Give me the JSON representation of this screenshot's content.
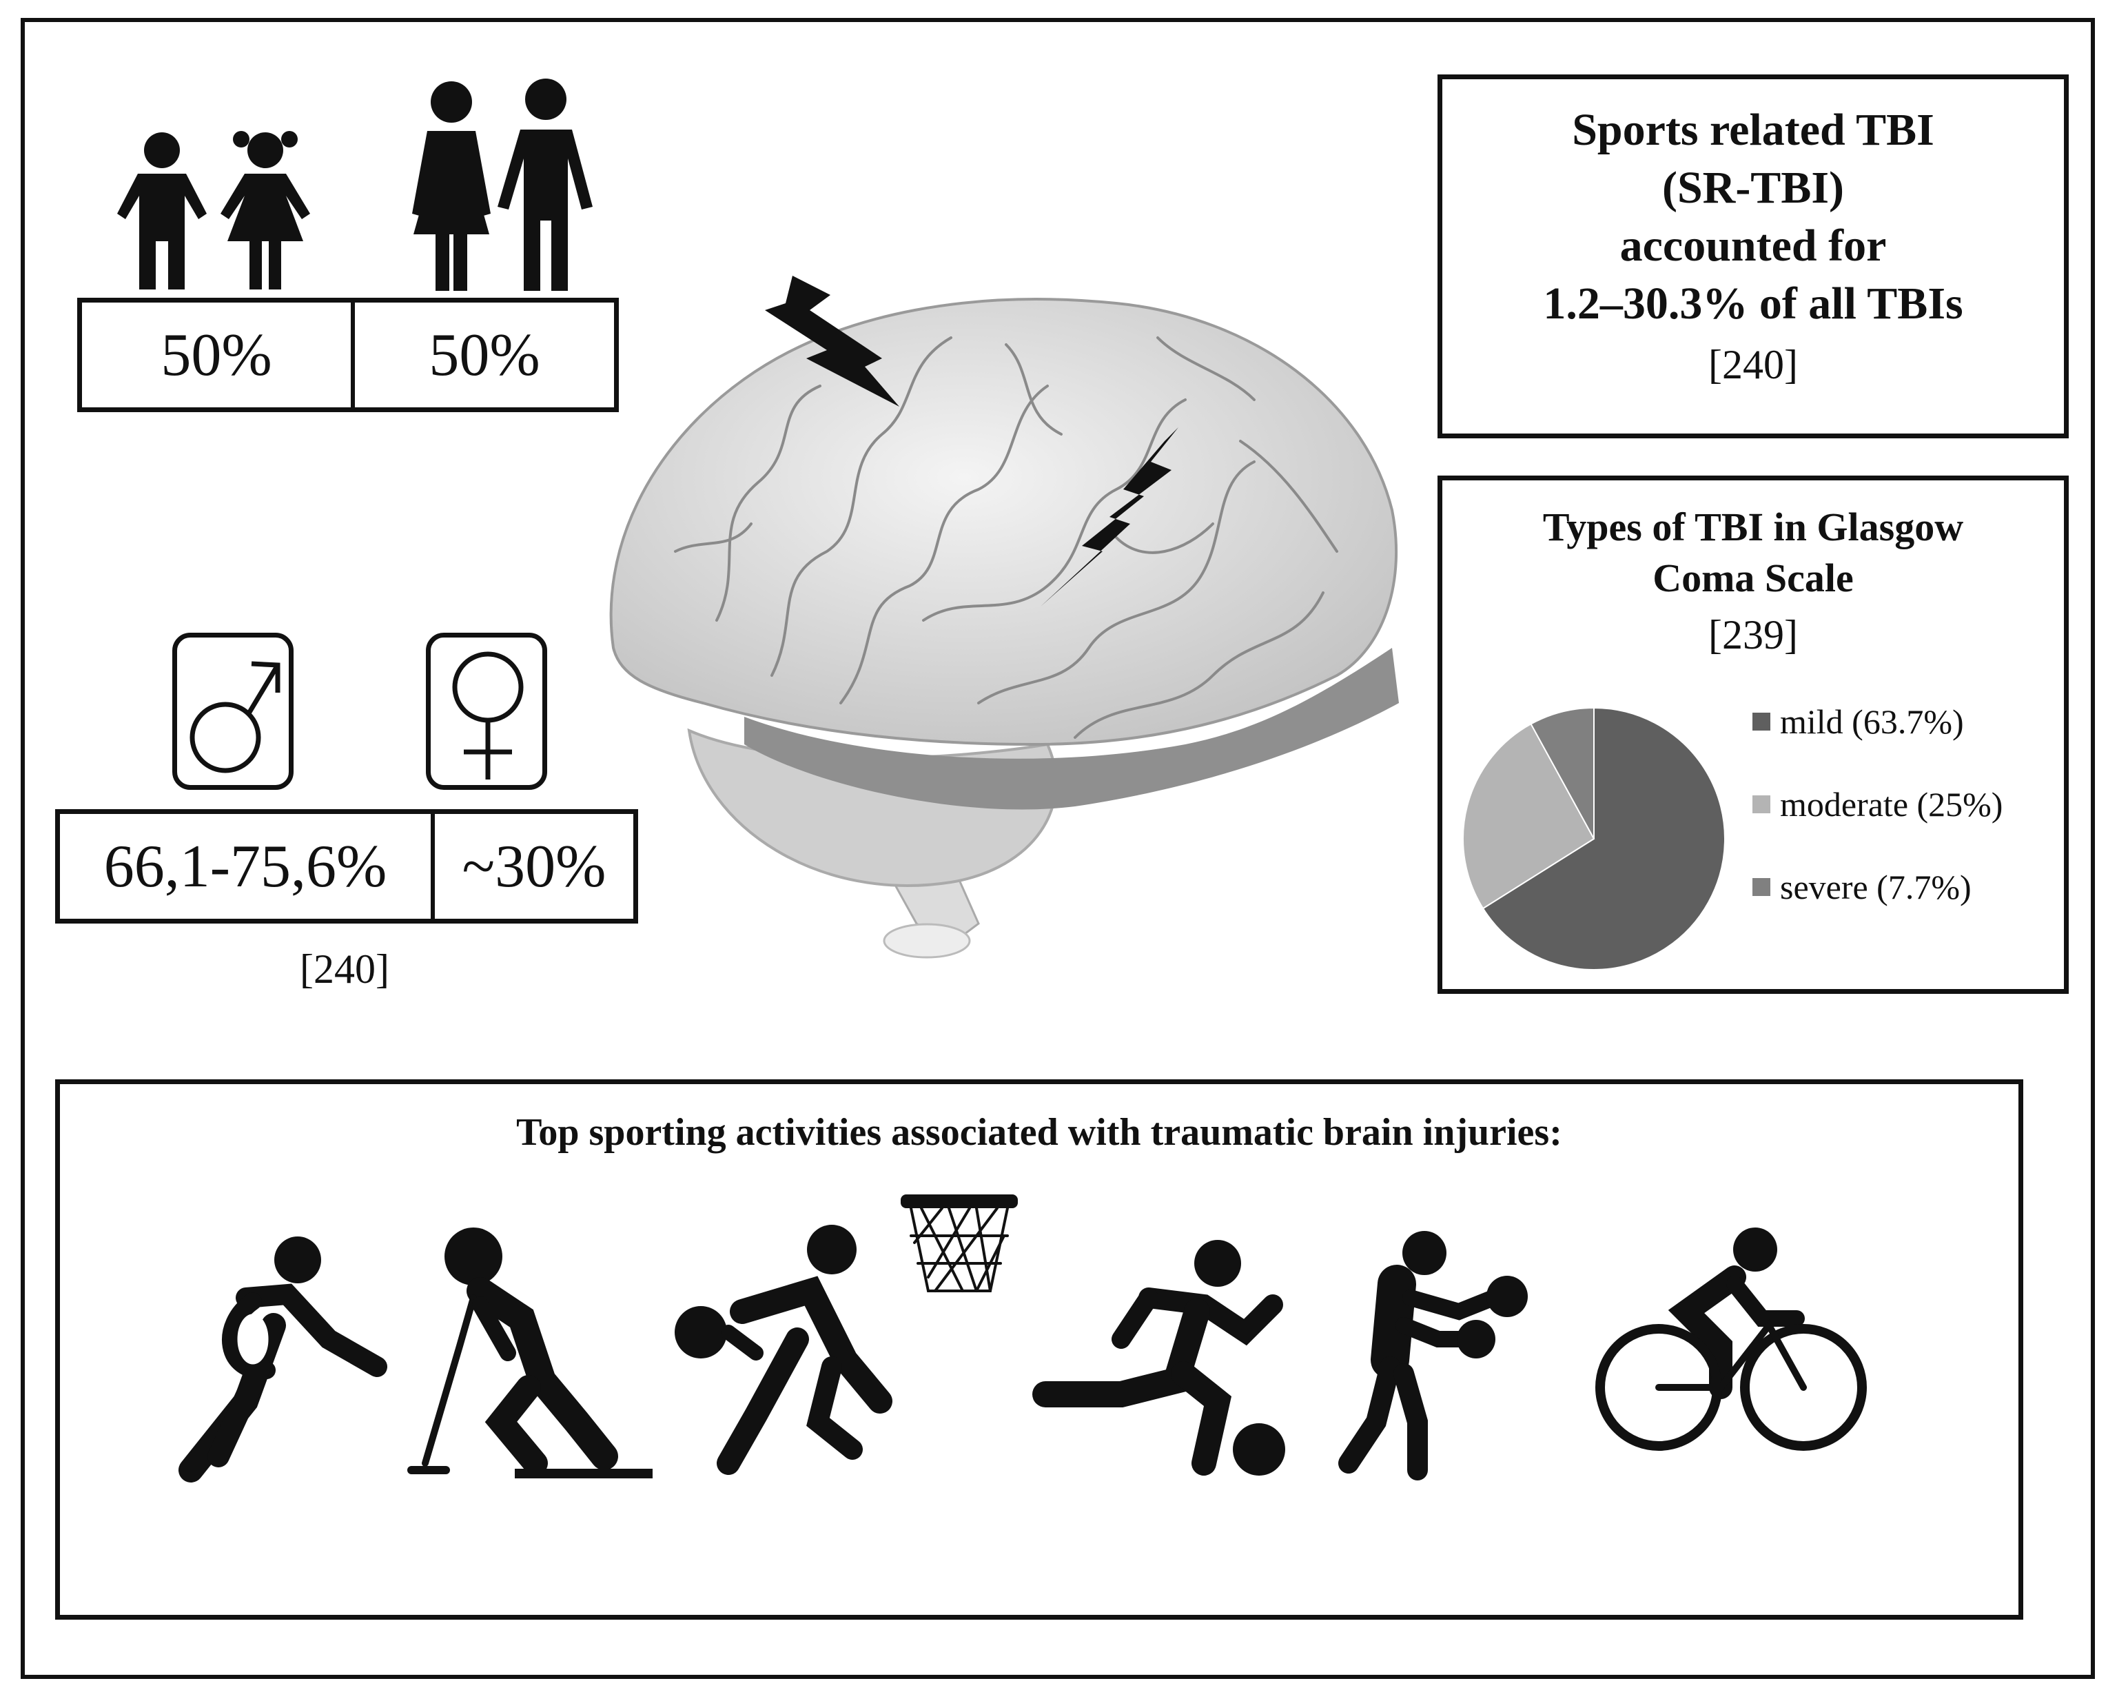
{
  "age_split": {
    "children_percent": "50%",
    "adults_percent": "50%"
  },
  "sex_split": {
    "male_percent": "66,1-75,6%",
    "female_percent": "~30%",
    "reference": "[240]"
  },
  "srtbi": {
    "line1": "Sports related TBI",
    "line2": "(SR-TBI)",
    "line3": "accounted for",
    "line4": "1.2–30.3% of all TBIs",
    "reference": "[240]"
  },
  "gcs": {
    "title_line1": "Types of  TBI in Glasgow",
    "title_line2": "Coma Scale",
    "reference": "[239]"
  },
  "chart_data": {
    "type": "pie",
    "title": "Types of  TBI in Glasgow Coma Scale",
    "categories": [
      "mild",
      "moderate",
      "severe"
    ],
    "values": [
      63.7,
      25,
      7.7
    ],
    "legend_labels": [
      "mild (63.7%)",
      "moderate (25%)",
      "severe (7.7%)"
    ],
    "colors": [
      "#5f5f5f",
      "#b4b4b4",
      "#808080"
    ],
    "legend_position": "right"
  },
  "sports": {
    "title": "Top sporting activities associated with traumatic brain injuries:",
    "icons": [
      "rugby-icon",
      "ice-hockey-icon",
      "basketball-icon",
      "soccer-icon",
      "boxing-icon",
      "cycling-icon"
    ]
  }
}
